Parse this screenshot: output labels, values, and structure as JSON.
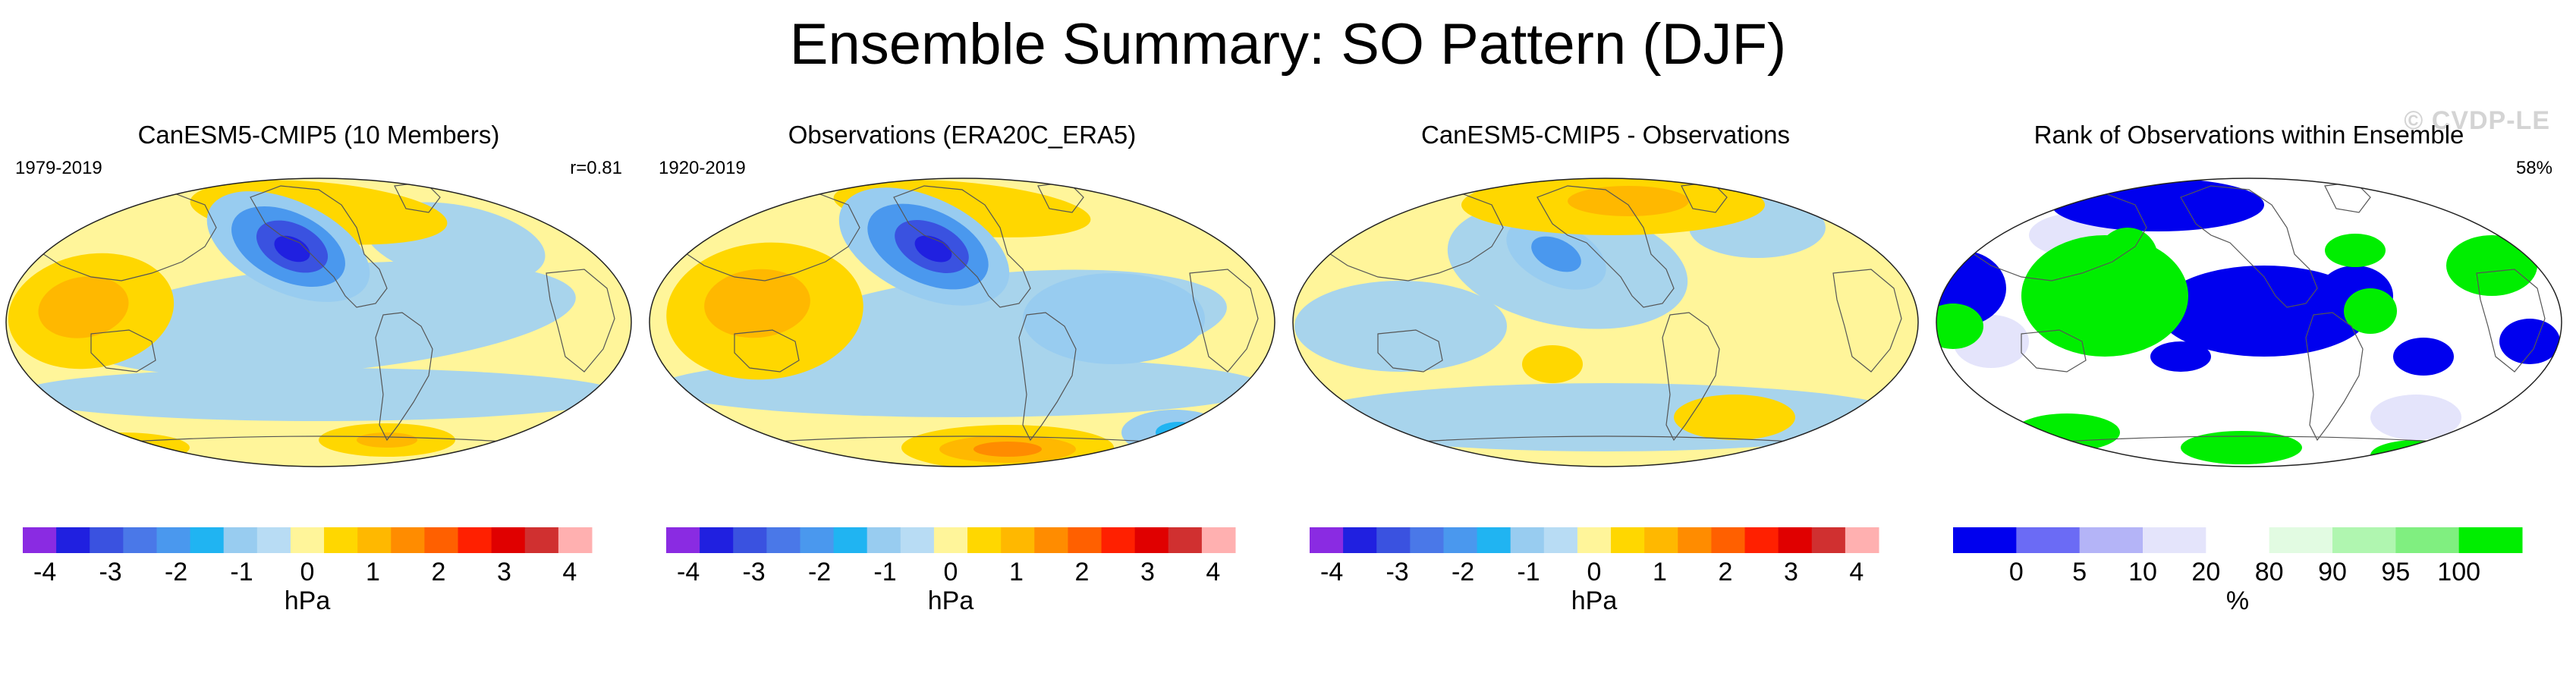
{
  "main_title": "Ensemble Summary: SO Pattern (DJF)",
  "watermark": "© CVDP-LE",
  "colors": {
    "water": "#a8d4ec",
    "background_yellow": "#fff59a",
    "land_outline": "#555555"
  },
  "panels": [
    {
      "title": "CanESM5-CMIP5 (10 Members)",
      "period": "1979-2019",
      "stat": "r=0.81",
      "colorbar_unit": "hPa"
    },
    {
      "title": "Observations (ERA20C_ERA5)",
      "period": "1920-2019",
      "stat": "",
      "colorbar_unit": "hPa"
    },
    {
      "title": "CanESM5-CMIP5 - Observations",
      "period": "",
      "stat": "",
      "colorbar_unit": "hPa"
    },
    {
      "title": "Rank of Observations within Ensemble",
      "period": "",
      "stat": "58%",
      "colorbar_unit": "%"
    }
  ],
  "chart_data": [
    {
      "type": "heatmap",
      "title": "CanESM5-CMIP5 (10 Members)",
      "subtitle_left": "1979-2019",
      "subtitle_right": "r=0.81",
      "projection": "Robinson (Pacific-centered)",
      "colorbar": {
        "unit": "hPa",
        "tick_labels": [
          "-4",
          "-3",
          "-2",
          "-1",
          "0",
          "1",
          "2",
          "3",
          "4"
        ],
        "colors": [
          "#8a2be2",
          "#2020e0",
          "#3a52e0",
          "#4a78e8",
          "#4a98ee",
          "#20b4f2",
          "#98ccf0",
          "#b8dcf4",
          "#fff59a",
          "#ffd700",
          "#ffb800",
          "#ff8c00",
          "#ff6000",
          "#ff2000",
          "#e00000",
          "#d03030",
          "#ffb0b0"
        ]
      },
      "features": [
        {
          "name": "North Pacific low",
          "value": -3.5
        },
        {
          "name": "Tropical Indo-Pacific high",
          "value": 1.5
        },
        {
          "name": "Eastern tropical Pacific low",
          "value": -0.8
        },
        {
          "name": "Southern Ocean high",
          "value": 1.5
        }
      ]
    },
    {
      "type": "heatmap",
      "title": "Observations (ERA20C_ERA5)",
      "subtitle_left": "1920-2019",
      "projection": "Robinson (Pacific-centered)",
      "colorbar": {
        "unit": "hPa",
        "tick_labels": [
          "-4",
          "-3",
          "-2",
          "-1",
          "0",
          "1",
          "2",
          "3",
          "4"
        ]
      },
      "features": [
        {
          "name": "North Pacific low",
          "value": -3.5
        },
        {
          "name": "Tropical Indo-Pacific high",
          "value": 1.5
        },
        {
          "name": "Southern Ocean high",
          "value": 2.5
        },
        {
          "name": "Southeast Pacific low",
          "value": -2.0
        }
      ]
    },
    {
      "type": "heatmap",
      "title": "CanESM5-CMIP5 - Observations",
      "projection": "Robinson (Pacific-centered)",
      "colorbar": {
        "unit": "hPa",
        "tick_labels": [
          "-4",
          "-3",
          "-2",
          "-1",
          "0",
          "1",
          "2",
          "3",
          "4"
        ]
      },
      "features": [
        {
          "name": "North Pacific difference",
          "value": -1.5
        },
        {
          "name": "Eurasian Arctic difference",
          "value": 1.5
        },
        {
          "name": "Southern Ocean difference",
          "value": -0.8
        }
      ]
    },
    {
      "type": "heatmap",
      "title": "Rank of Observations within Ensemble",
      "subtitle_right": "58%",
      "projection": "Robinson (Pacific-centered)",
      "colorbar": {
        "unit": "%",
        "tick_labels": [
          "0",
          "5",
          "10",
          "20",
          "80",
          "90",
          "95",
          "100"
        ],
        "bins": [
          "0-5",
          "5-10",
          "10-20",
          "20-80",
          "80-90",
          "90-95",
          "95-100"
        ],
        "colors": [
          "#0000ee",
          "#6b6bf5",
          "#b4b4f7",
          "#e4e4fb",
          "#ffffff",
          "#e2fbe2",
          "#b0f6b0",
          "#80ef80",
          "#00ee00"
        ]
      },
      "features": [
        {
          "name": "Tropical Pacific",
          "value": 2
        },
        {
          "name": "Maritime Continent",
          "value": 98
        },
        {
          "name": "Africa",
          "value": 2
        }
      ]
    }
  ]
}
